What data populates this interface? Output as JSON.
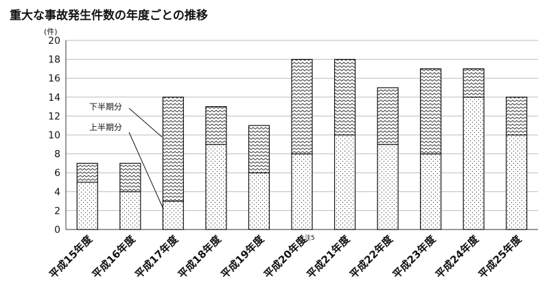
{
  "chart_data": {
    "type": "bar",
    "stacked": true,
    "title": "重大な事故発生件数の年度ごとの推移",
    "ylabel": "(件)",
    "ylim": [
      0,
      20
    ],
    "yticks": [
      0,
      2,
      4,
      6,
      8,
      10,
      12,
      14,
      16,
      18,
      20
    ],
    "grid": true,
    "categories": [
      "平成15年度",
      "平成16年度",
      "平成17年度",
      "平成18年度",
      "平成19年度",
      "平成20年度",
      "平成21年度",
      "平成22年度",
      "平成23年度",
      "平成24年度",
      "平成25年度"
    ],
    "series": [
      {
        "name": "上半期分",
        "pattern": "dots",
        "values": [
          5,
          4,
          3,
          9,
          6,
          8,
          10,
          9,
          8,
          14,
          10
        ]
      },
      {
        "name": "下半期分",
        "pattern": "zigzag",
        "values": [
          2,
          3,
          11,
          4,
          5,
          10,
          8,
          6,
          9,
          3,
          4
        ]
      }
    ],
    "annotations": [
      {
        "category": "平成20年度",
        "text": "注5"
      }
    ]
  }
}
